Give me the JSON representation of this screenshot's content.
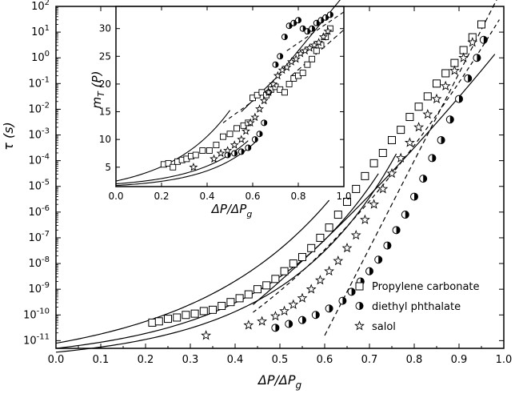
{
  "chart_data": [
    {
      "type": "scatter",
      "role": "main",
      "xlabel": "ΔP/ΔPg",
      "ylabel": "τ (s)",
      "xlim": [
        0.0,
        1.0
      ],
      "ylim_log10": [
        -11.3,
        2
      ],
      "y_scale": "log",
      "x_ticks": [
        "0.0",
        "0.1",
        "0.2",
        "0.3",
        "0.4",
        "0.5",
        "0.6",
        "0.7",
        "0.8",
        "0.9",
        "1.0"
      ],
      "y_ticks": [
        "10-11",
        "10-10",
        "10-9",
        "10-8",
        "10-7",
        "10-6",
        "10-5",
        "10-4",
        "10-3",
        "10-2",
        "10-1",
        "10^0",
        "10^1",
        "10^2"
      ],
      "legend_position": "bottom-right",
      "series": [
        {
          "name": "Propylene carbonate",
          "marker": "open-square",
          "points": [
            [
              0.215,
              -10.3
            ],
            [
              0.23,
              -10.25
            ],
            [
              0.25,
              -10.15
            ],
            [
              0.27,
              -10.1
            ],
            [
              0.29,
              -10.0
            ],
            [
              0.31,
              -9.95
            ],
            [
              0.33,
              -9.85
            ],
            [
              0.35,
              -9.8
            ],
            [
              0.37,
              -9.65
            ],
            [
              0.39,
              -9.5
            ],
            [
              0.41,
              -9.35
            ],
            [
              0.43,
              -9.2
            ],
            [
              0.45,
              -9.0
            ],
            [
              0.47,
              -8.85
            ],
            [
              0.49,
              -8.6
            ],
            [
              0.51,
              -8.3
            ],
            [
              0.53,
              -8.0
            ],
            [
              0.55,
              -7.75
            ],
            [
              0.57,
              -7.4
            ],
            [
              0.59,
              -7.0
            ],
            [
              0.61,
              -6.6
            ],
            [
              0.63,
              -6.1
            ],
            [
              0.65,
              -5.6
            ],
            [
              0.67,
              -5.1
            ],
            [
              0.69,
              -4.6
            ],
            [
              0.71,
              -4.1
            ],
            [
              0.73,
              -3.7
            ],
            [
              0.75,
              -3.2
            ],
            [
              0.77,
              -2.8
            ],
            [
              0.79,
              -2.3
            ],
            [
              0.81,
              -1.9
            ],
            [
              0.83,
              -1.5
            ],
            [
              0.85,
              -1.0
            ],
            [
              0.87,
              -0.6
            ],
            [
              0.89,
              -0.2
            ],
            [
              0.91,
              0.3
            ],
            [
              0.93,
              0.8
            ],
            [
              0.95,
              1.3
            ]
          ]
        },
        {
          "name": "diethyl phthalate",
          "marker": "half-filled-circle",
          "points": [
            [
              0.49,
              -10.5
            ],
            [
              0.52,
              -10.35
            ],
            [
              0.55,
              -10.2
            ],
            [
              0.58,
              -10.0
            ],
            [
              0.61,
              -9.75
            ],
            [
              0.64,
              -9.45
            ],
            [
              0.66,
              -9.1
            ],
            [
              0.68,
              -8.7
            ],
            [
              0.7,
              -8.3
            ],
            [
              0.72,
              -7.85
            ],
            [
              0.74,
              -7.3
            ],
            [
              0.76,
              -6.7
            ],
            [
              0.78,
              -6.1
            ],
            [
              0.8,
              -5.4
            ],
            [
              0.82,
              -4.7
            ],
            [
              0.84,
              -3.9
            ],
            [
              0.86,
              -3.2
            ],
            [
              0.88,
              -2.4
            ],
            [
              0.9,
              -1.6
            ],
            [
              0.92,
              -0.8
            ],
            [
              0.94,
              0.0
            ],
            [
              0.955,
              0.7
            ]
          ]
        },
        {
          "name": "salol",
          "marker": "open-star",
          "points": [
            [
              0.335,
              -10.8
            ],
            [
              0.43,
              -10.4
            ],
            [
              0.46,
              -10.25
            ],
            [
              0.49,
              -10.05
            ],
            [
              0.51,
              -9.85
            ],
            [
              0.53,
              -9.6
            ],
            [
              0.55,
              -9.35
            ],
            [
              0.57,
              -9.0
            ],
            [
              0.59,
              -8.65
            ],
            [
              0.61,
              -8.3
            ],
            [
              0.63,
              -7.9
            ],
            [
              0.65,
              -7.4
            ],
            [
              0.67,
              -6.9
            ],
            [
              0.69,
              -6.3
            ],
            [
              0.71,
              -5.7
            ],
            [
              0.73,
              -5.1
            ],
            [
              0.75,
              -4.5
            ],
            [
              0.77,
              -3.9
            ],
            [
              0.79,
              -3.3
            ],
            [
              0.81,
              -2.7
            ],
            [
              0.83,
              -2.2
            ],
            [
              0.85,
              -1.6
            ],
            [
              0.87,
              -1.1
            ],
            [
              0.89,
              -0.5
            ],
            [
              0.91,
              0.0
            ],
            [
              0.93,
              0.6
            ]
          ]
        }
      ]
    },
    {
      "type": "scatter",
      "role": "inset",
      "xlabel": "ΔP/ΔPg",
      "ylabel": "mT (P)",
      "xlim": [
        0.0,
        1.0
      ],
      "ylim": [
        1.5,
        34
      ],
      "x_ticks": [
        "0.0",
        "0.2",
        "0.4",
        "0.6",
        "0.8",
        "1.0"
      ],
      "y_ticks": [
        "5",
        "10",
        "15",
        "20",
        "25",
        "30"
      ],
      "series": [
        {
          "name": "Propylene carbonate",
          "marker": "open-square",
          "points": [
            [
              0.21,
              5.5
            ],
            [
              0.23,
              5.7
            ],
            [
              0.25,
              5.0
            ],
            [
              0.27,
              6.0
            ],
            [
              0.29,
              6.3
            ],
            [
              0.31,
              6.5
            ],
            [
              0.33,
              7.0
            ],
            [
              0.35,
              7.2
            ],
            [
              0.38,
              8.0
            ],
            [
              0.41,
              8.0
            ],
            [
              0.44,
              9.0
            ],
            [
              0.47,
              10.5
            ],
            [
              0.5,
              11.0
            ],
            [
              0.53,
              12.0
            ],
            [
              0.56,
              12.5
            ],
            [
              0.58,
              13.0
            ],
            [
              0.6,
              17.5
            ],
            [
              0.62,
              18.0
            ],
            [
              0.64,
              18.5
            ],
            [
              0.66,
              18.0
            ],
            [
              0.68,
              19.0
            ],
            [
              0.7,
              19.5
            ],
            [
              0.72,
              19.0
            ],
            [
              0.74,
              18.5
            ],
            [
              0.76,
              20.0
            ],
            [
              0.78,
              21.0
            ],
            [
              0.8,
              21.5
            ],
            [
              0.82,
              22.0
            ],
            [
              0.84,
              23.5
            ],
            [
              0.86,
              24.5
            ],
            [
              0.88,
              26.0
            ],
            [
              0.9,
              27.0
            ],
            [
              0.92,
              28.5
            ],
            [
              0.94,
              30.0
            ]
          ]
        },
        {
          "name": "diethyl phthalate",
          "marker": "half-filled-circle",
          "points": [
            [
              0.49,
              7.2
            ],
            [
              0.52,
              7.5
            ],
            [
              0.55,
              7.8
            ],
            [
              0.58,
              8.5
            ],
            [
              0.61,
              10.0
            ],
            [
              0.63,
              11.0
            ],
            [
              0.65,
              13.0
            ],
            [
              0.67,
              18.5
            ],
            [
              0.7,
              23.5
            ],
            [
              0.72,
              25.0
            ],
            [
              0.74,
              28.5
            ],
            [
              0.76,
              30.5
            ],
            [
              0.78,
              31.0
            ],
            [
              0.8,
              31.5
            ],
            [
              0.82,
              30.0
            ],
            [
              0.84,
              29.5
            ],
            [
              0.86,
              30.0
            ],
            [
              0.88,
              31.0
            ],
            [
              0.9,
              31.5
            ],
            [
              0.92,
              32.0
            ],
            [
              0.94,
              32.5
            ]
          ]
        },
        {
          "name": "salol",
          "marker": "open-star",
          "points": [
            [
              0.34,
              5.0
            ],
            [
              0.43,
              6.5
            ],
            [
              0.46,
              7.5
            ],
            [
              0.49,
              8.0
            ],
            [
              0.52,
              9.0
            ],
            [
              0.55,
              10.0
            ],
            [
              0.57,
              11.5
            ],
            [
              0.59,
              13.0
            ],
            [
              0.61,
              14.0
            ],
            [
              0.63,
              15.5
            ],
            [
              0.65,
              17.0
            ],
            [
              0.67,
              18.5
            ],
            [
              0.69,
              20.0
            ],
            [
              0.71,
              21.5
            ],
            [
              0.73,
              22.5
            ],
            [
              0.75,
              23.0
            ],
            [
              0.77,
              24.0
            ],
            [
              0.79,
              24.5
            ],
            [
              0.81,
              25.5
            ],
            [
              0.83,
              26.0
            ],
            [
              0.85,
              26.5
            ],
            [
              0.87,
              27.0
            ],
            [
              0.89,
              27.5
            ],
            [
              0.91,
              28.5
            ],
            [
              0.93,
              29.5
            ]
          ]
        }
      ]
    }
  ],
  "legend": {
    "items": [
      {
        "symbol": "open-square",
        "label": "Propylene carbonate"
      },
      {
        "symbol": "half-filled-circle",
        "label": "diethyl phthalate"
      },
      {
        "symbol": "open-star",
        "label": "salol"
      }
    ]
  },
  "labels": {
    "main_xlabel_italic": "ΔP/ΔP",
    "main_xlabel_sub": "g",
    "main_ylabel": "τ (s)",
    "inset_xlabel_italic": "ΔP/ΔP",
    "inset_xlabel_sub": "g",
    "inset_ylabel_main": "m",
    "inset_ylabel_sub": "T",
    "inset_ylabel_rest": " (P)"
  }
}
